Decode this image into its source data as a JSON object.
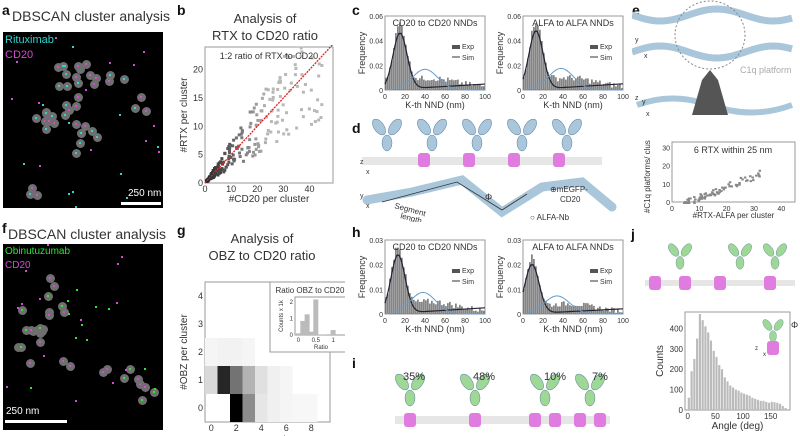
{
  "panels": {
    "a": {
      "label": "a",
      "title": "DBSCAN cluster analysis",
      "legend": [
        "Rituximab",
        "CD20"
      ],
      "scalebar": "250 nm",
      "colors": {
        "ab": "#2fd3d0",
        "cd20": "#d44bd4",
        "cluster": "#777777"
      }
    },
    "b": {
      "label": "b",
      "title_l1": "Analysis of",
      "title_l2": "RTX to CD20 ratio"
    },
    "c": {
      "label": "c"
    },
    "d": {
      "label": "d",
      "labels": {
        "z": "z",
        "x": "x",
        "y": "y",
        "segment": "Segment",
        "length": "length",
        "phi": "Φ",
        "mEGFP": "⊕mEGFP-",
        "cd20": "CD20",
        "alfa_nb": "○ ALFA-Nb"
      }
    },
    "e": {
      "label": "e",
      "c1q": "C1q platform",
      "axes_top": [
        "y",
        "x"
      ],
      "axes_mid": [
        "z",
        "y",
        "x"
      ]
    },
    "f": {
      "label": "f",
      "title": "DBSCAN cluster analysis",
      "legend": [
        "Obinutuzumab",
        "CD20"
      ],
      "scalebar": "250 nm",
      "colors": {
        "ab": "#2ee62e",
        "cd20": "#d44bd4"
      }
    },
    "g": {
      "label": "g",
      "title_l1": "Analysis of",
      "title_l2": "OBZ to CD20 ratio"
    },
    "h": {
      "label": "h"
    },
    "i": {
      "label": "i",
      "percents": [
        "35%",
        "48%",
        "10%",
        "7%"
      ]
    },
    "j": {
      "label": "j",
      "axes": [
        "z",
        "x"
      ],
      "phi": "Φ"
    }
  },
  "chart_data": [
    {
      "id": "b",
      "type": "heatmap",
      "title": "1:2 ratio of RTX to CD20",
      "xlabel": "#CD20 per cluster",
      "ylabel": "#RTX per cluster",
      "xticks": [
        "0",
        "10",
        "20",
        "30",
        "40"
      ],
      "yticks": [
        "0",
        "5",
        "10",
        "15",
        "20"
      ],
      "xlim": [
        0,
        49
      ],
      "ylim": [
        0,
        24
      ],
      "fit_line": {
        "slope": 0.5,
        "color": "#e02020"
      }
    },
    {
      "id": "c-left",
      "type": "bar",
      "title": "CD20 to CD20 NNDs",
      "xlabel": "K-th NND (nm)",
      "ylabel": "Frequency",
      "xticks": [
        "0",
        "20",
        "40",
        "60",
        "80",
        "100"
      ],
      "yticks": [
        "0",
        "0.02",
        "0.04",
        "0.06"
      ],
      "xlim": [
        0,
        100
      ],
      "ylim": [
        0,
        0.06
      ],
      "legend": [
        "Exp",
        "Sim"
      ],
      "peak_x": 15,
      "peak_y": 0.048
    },
    {
      "id": "c-right",
      "type": "bar",
      "title": "ALFA to ALFA NNDs",
      "xlabel": "K-th NND (nm)",
      "ylabel": "Frequency",
      "xticks": [
        "0",
        "20",
        "40",
        "60",
        "80",
        "100"
      ],
      "yticks": [
        "0",
        "0.02",
        "0.04",
        "0.06"
      ],
      "xlim": [
        0,
        100
      ],
      "ylim": [
        0,
        0.06
      ],
      "legend": [
        "Exp",
        "Sim"
      ],
      "peak_x": 13,
      "peak_y": 0.05
    },
    {
      "id": "e-scatter",
      "type": "scatter",
      "title": "6 RTX within 25 nm",
      "xlabel": "#RTX-ALFA per cluster",
      "ylabel": "#C1q platforms/ cluster",
      "xticks": [
        "0",
        "10",
        "20",
        "30",
        "40"
      ],
      "yticks": [
        "0",
        "10",
        "20",
        "30"
      ],
      "xlim": [
        0,
        45
      ],
      "ylim": [
        0,
        33
      ]
    },
    {
      "id": "g",
      "type": "heatmap",
      "xlabel": "#CD20 per cluster",
      "ylabel": "#OBZ per cluster",
      "xticks": [
        "0",
        "2",
        "4",
        "6",
        "8"
      ],
      "yticks": [
        "0",
        "1",
        "2",
        "3",
        "4"
      ],
      "xlim": [
        -0.5,
        9.5
      ],
      "ylim": [
        -0.5,
        4.5
      ],
      "cells": [
        [
          1,
          1,
          0.85
        ],
        [
          2,
          1,
          0.55
        ],
        [
          3,
          1,
          0.3
        ],
        [
          2,
          0,
          1.0
        ],
        [
          3,
          0,
          0.45
        ],
        [
          0,
          1,
          0.15
        ],
        [
          1,
          1,
          0.85
        ],
        [
          4,
          1,
          0.12
        ],
        [
          4,
          0,
          0.1
        ],
        [
          5,
          0,
          0.06
        ],
        [
          5,
          1,
          0.06
        ],
        [
          0,
          2,
          0.04
        ],
        [
          1,
          2,
          0.05
        ],
        [
          2,
          2,
          0.05
        ],
        [
          3,
          2,
          0.04
        ],
        [
          6,
          0,
          0.04
        ],
        [
          7,
          0,
          0.03
        ],
        [
          8,
          0,
          0.03
        ],
        [
          6,
          1,
          0.04
        ]
      ]
    },
    {
      "id": "g-inset",
      "type": "bar",
      "title": "Ratio OBZ to CD20",
      "xlabel": "Ratio",
      "ylabel": "Counts x 1k",
      "xticks": [
        "0",
        "0.5",
        "1"
      ],
      "yticks": [
        "0",
        "1",
        "2"
      ],
      "xlim": [
        -0.1,
        1.4
      ],
      "ylim": [
        0,
        2.3
      ],
      "x": [
        0,
        0.125,
        0.25,
        0.375,
        0.5,
        0.625,
        0.75,
        0.875,
        1.0
      ],
      "values": [
        0.1,
        0.85,
        1.25,
        0.2,
        2.15,
        0.02,
        0.02,
        0,
        0.3
      ]
    },
    {
      "id": "h-left",
      "type": "bar",
      "title": "CD20 to CD20 NNDs",
      "xlabel": "K-th NND (nm)",
      "ylabel": "Frequency",
      "xticks": [
        "0",
        "20",
        "40",
        "60",
        "80",
        "100"
      ],
      "yticks": [
        "0",
        "0.01",
        "0.02",
        "0.03"
      ],
      "xlim": [
        0,
        100
      ],
      "ylim": [
        0,
        0.03
      ],
      "legend": [
        "Exp",
        "Sim"
      ],
      "peak_x": 13,
      "peak_y": 0.025
    },
    {
      "id": "h-right",
      "type": "bar",
      "title": "ALFA to ALFA NNDs",
      "xlabel": "K-th NND (nm)",
      "ylabel": "Frequency",
      "xticks": [
        "0",
        "20",
        "40",
        "60",
        "80",
        "100"
      ],
      "yticks": [
        "0",
        "0.01",
        "0.02",
        "0.03"
      ],
      "xlim": [
        0,
        100
      ],
      "ylim": [
        0,
        0.03
      ],
      "legend": [
        "Exp",
        "Sim"
      ],
      "peak_x": 9,
      "peak_y": 0.021
    },
    {
      "id": "j",
      "type": "bar",
      "xlabel": "Angle (deg)",
      "ylabel": "Counts",
      "xticks": [
        "0",
        "50",
        "100",
        "150"
      ],
      "yticks": [
        "0",
        "100",
        "200",
        "300",
        "400"
      ],
      "xlim": [
        -5,
        185
      ],
      "ylim": [
        0,
        480
      ],
      "x": [
        0,
        5,
        10,
        15,
        20,
        25,
        30,
        35,
        40,
        45,
        50,
        55,
        60,
        65,
        70,
        75,
        80,
        85,
        90,
        95,
        100,
        105,
        110,
        115,
        120,
        125,
        130,
        135,
        140,
        145,
        150,
        155,
        160,
        165,
        170,
        175
      ],
      "values": [
        60,
        190,
        250,
        350,
        470,
        440,
        410,
        380,
        340,
        290,
        260,
        220,
        200,
        160,
        140,
        120,
        110,
        100,
        95,
        85,
        80,
        75,
        70,
        60,
        55,
        50,
        45,
        45,
        40,
        35,
        40,
        38,
        35,
        30,
        20,
        10
      ]
    }
  ]
}
